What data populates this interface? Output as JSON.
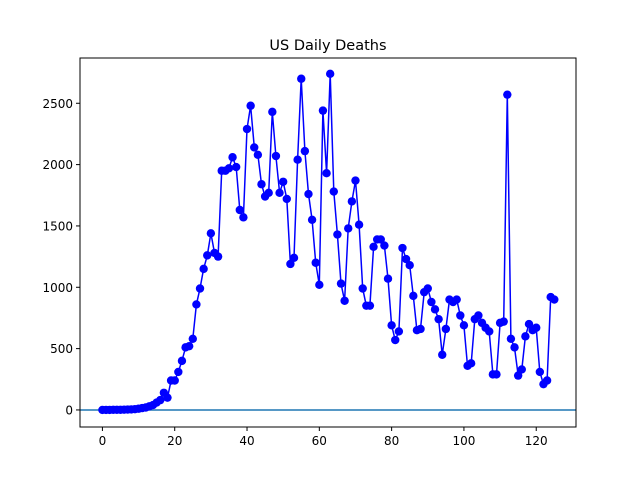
{
  "chart_data": {
    "type": "line",
    "title": "US Daily Deaths",
    "xlabel": "",
    "ylabel": "",
    "xlim": [
      -6.2,
      131
    ],
    "ylim": [
      -139,
      2869
    ],
    "xticks": [
      0,
      20,
      40,
      60,
      80,
      100,
      120
    ],
    "yticks": [
      0,
      500,
      1000,
      1500,
      2000,
      2500
    ],
    "grid": false,
    "series": [
      {
        "name": "US Daily Deaths",
        "color": "#0000ff",
        "marker": "circle",
        "values": [
          0,
          0,
          0,
          1,
          1,
          1,
          2,
          3,
          4,
          6,
          10,
          15,
          20,
          30,
          40,
          60,
          80,
          140,
          100,
          240,
          240,
          310,
          400,
          510,
          520,
          580,
          860,
          990,
          1150,
          1260,
          1440,
          1280,
          1250,
          1950,
          1950,
          1970,
          2060,
          1980,
          1630,
          1570,
          2290,
          2480,
          2140,
          2080,
          1840,
          1740,
          1770,
          2430,
          2070,
          1770,
          1860,
          1720,
          1190,
          1240,
          2040,
          2700,
          2110,
          1760,
          1550,
          1200,
          1020,
          2440,
          1930,
          2740,
          1780,
          1430,
          1030,
          890,
          1480,
          1700,
          1870,
          1510,
          990,
          850,
          850,
          1330,
          1390,
          1390,
          1340,
          1070,
          690,
          570,
          640,
          1320,
          1230,
          1180,
          930,
          650,
          660,
          960,
          990,
          880,
          820,
          740,
          450,
          660,
          900,
          880,
          900,
          770,
          690,
          360,
          380,
          740,
          770,
          710,
          670,
          640,
          290,
          290,
          710,
          720,
          2570,
          580,
          510,
          280,
          330,
          600,
          700,
          650,
          670,
          310,
          210,
          240,
          920,
          900
        ]
      }
    ],
    "reference_line": {
      "y": 0,
      "color": "#1f77b4"
    }
  }
}
